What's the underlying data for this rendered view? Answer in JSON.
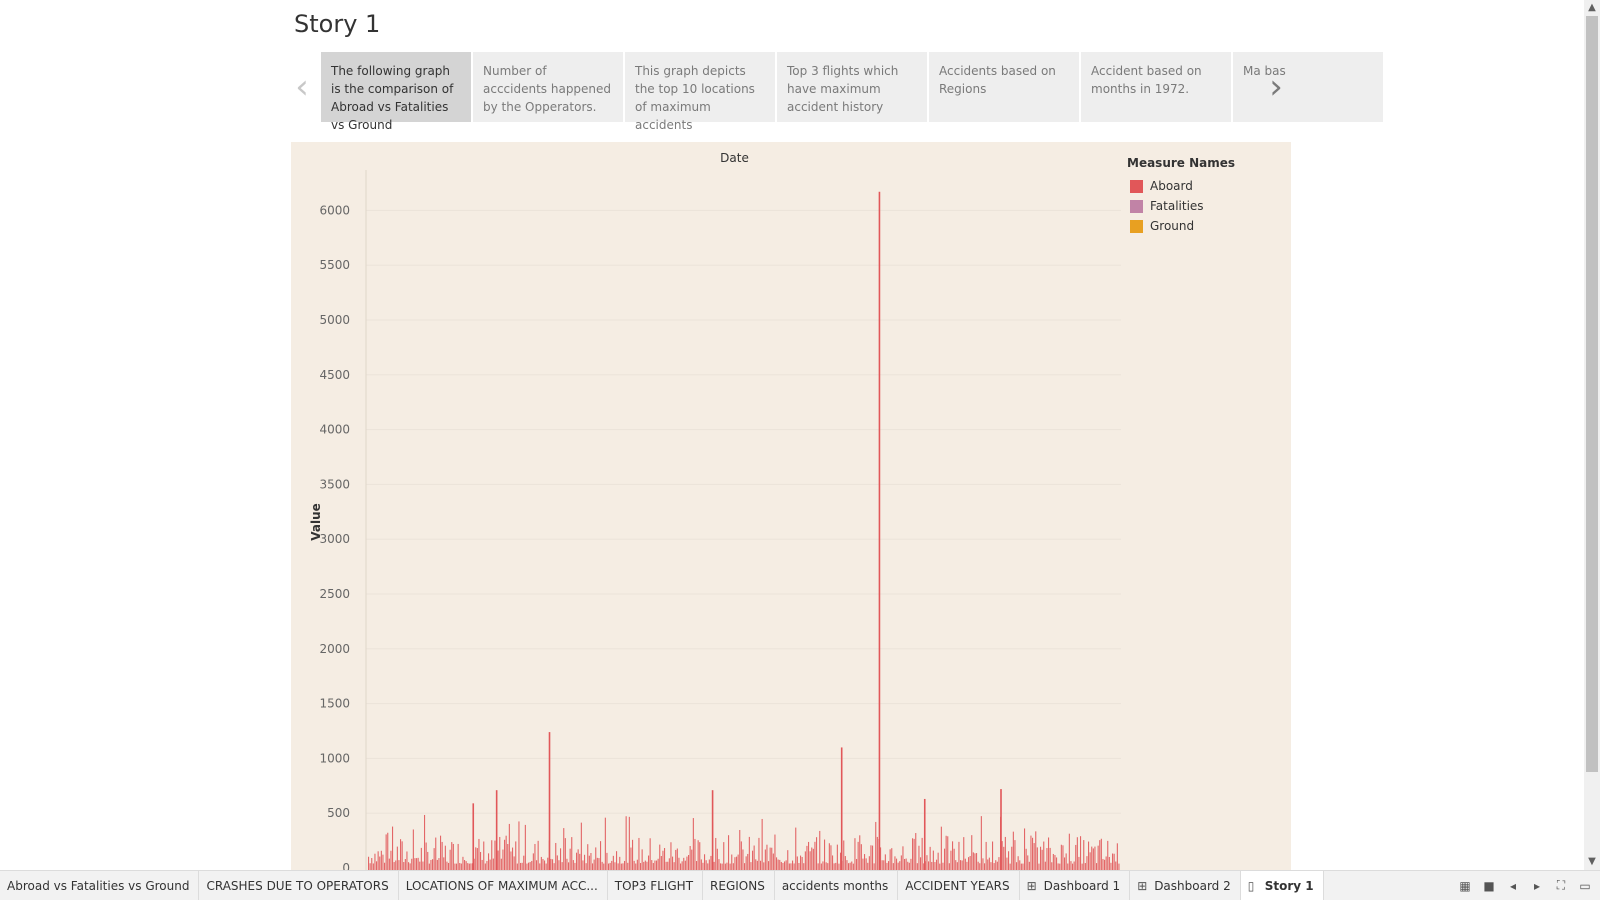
{
  "story": {
    "title": "Story 1",
    "prev_arrow": "‹",
    "next_arrow": "›",
    "points": [
      {
        "text": "The following graph is the comparison of Abroad vs Fatalities vs Ground"
      },
      {
        "text": "Number of acccidents happened by the Opperators."
      },
      {
        "text": "This graph depicts the top 10  locations of maximum accidents"
      },
      {
        "text": "Top 3 flights which have maximum accident history"
      },
      {
        "text": "Accidents based on Regions"
      },
      {
        "text": "Accident based on months in 1972."
      },
      {
        "text": "Ma bas"
      }
    ]
  },
  "chart_data": {
    "type": "bar",
    "title": "Date",
    "ylabel": "Value",
    "ylim": [
      0,
      6300
    ],
    "yticks": [
      0,
      500,
      1000,
      1500,
      2000,
      2500,
      3000,
      3500,
      4000,
      4500,
      5000,
      5500,
      6000
    ],
    "series": [
      {
        "name": "Aboard",
        "color": "#e15759"
      },
      {
        "name": "Fatalities",
        "color": "#c183a6"
      },
      {
        "name": "Ground",
        "color": "#e8a021"
      }
    ],
    "spikes": [
      {
        "pos": 0.242,
        "value": 1240
      },
      {
        "pos": 0.629,
        "value": 1100
      },
      {
        "pos": 0.679,
        "value": 6170
      },
      {
        "pos": 0.172,
        "value": 710
      },
      {
        "pos": 0.141,
        "value": 590
      },
      {
        "pos": 0.458,
        "value": 710
      },
      {
        "pos": 0.84,
        "value": 720
      },
      {
        "pos": 0.739,
        "value": 630
      }
    ]
  },
  "legend": {
    "title": "Measure Names",
    "items": [
      {
        "label": "Aboard",
        "color": "#e15759"
      },
      {
        "label": "Fatalities",
        "color": "#c183a6"
      },
      {
        "label": "Ground",
        "color": "#e8a021"
      }
    ]
  },
  "tabs": [
    {
      "label": "Abroad vs Fatalities vs Ground",
      "icon": ""
    },
    {
      "label": "CRASHES DUE TO OPERATORS",
      "icon": ""
    },
    {
      "label": "LOCATIONS OF MAXIMUM ACC...",
      "icon": ""
    },
    {
      "label": "TOP3 FLIGHT",
      "icon": ""
    },
    {
      "label": "REGIONS",
      "icon": ""
    },
    {
      "label": "accidents months",
      "icon": ""
    },
    {
      "label": "ACCIDENT YEARS",
      "icon": ""
    },
    {
      "label": "Dashboard 1",
      "icon": "⊞"
    },
    {
      "label": "Dashboard 2",
      "icon": "⊞"
    },
    {
      "label": "Story 1",
      "icon": "▯",
      "active": true
    }
  ],
  "toolbar_icons": [
    "grid-view-icon",
    "filmstrip-view-icon",
    "first-sheet-icon",
    "prev-sheet-icon",
    "next-sheet-icon",
    "presentation-mode-icon"
  ]
}
